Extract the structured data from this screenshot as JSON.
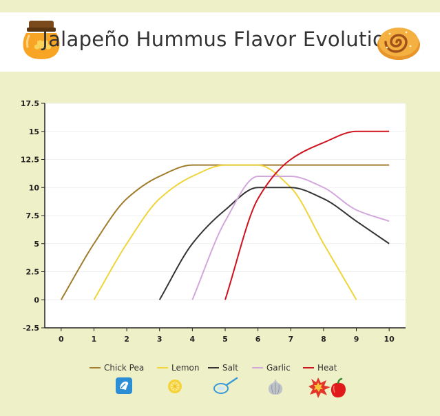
{
  "header": {
    "title": "Jalapeño Hummus Flavor Evolution",
    "left_icon": "honey-jar-icon",
    "right_icon": "cinnamon-roll-icon"
  },
  "chart_data": {
    "type": "line",
    "title": "Jalapeño Hummus Flavor Evolution",
    "xlabel": "",
    "ylabel": "",
    "xlim": [
      -0.5,
      10.5
    ],
    "ylim": [
      -2.5,
      17.5
    ],
    "xticks": [
      0,
      1,
      2,
      3,
      4,
      5,
      6,
      7,
      8,
      9,
      10
    ],
    "yticks": [
      -2.5,
      0,
      2.5,
      5,
      7.5,
      10,
      12.5,
      15,
      17.5
    ],
    "ytick_labels": [
      "-2.5",
      "0",
      "2.5",
      "5",
      "7.5",
      "10",
      "12.5",
      "15",
      "17.5"
    ],
    "grid": true,
    "legend_position": "bottom",
    "series": [
      {
        "name": "Chick Pea",
        "color": "#a07c2c",
        "icon": "bread-slice-icon",
        "x": [
          0,
          1,
          2,
          3,
          4,
          5,
          6,
          7,
          8,
          9,
          10
        ],
        "y": [
          0,
          5,
          9,
          11,
          12,
          12,
          12,
          12,
          12,
          12,
          12
        ]
      },
      {
        "name": "Lemon",
        "color": "#f0d43a",
        "icon": "lemon-icon",
        "x": [
          1,
          2,
          3,
          4,
          5,
          6,
          7,
          8,
          9
        ],
        "y": [
          0,
          5,
          9,
          11,
          12,
          12,
          10,
          5,
          0
        ]
      },
      {
        "name": "Salt",
        "color": "#333333",
        "icon": "salt-spoon-icon",
        "x": [
          3,
          4,
          5,
          6,
          7,
          8,
          9,
          10
        ],
        "y": [
          0,
          5,
          8,
          10,
          10,
          9,
          7,
          5
        ]
      },
      {
        "name": "Garlic",
        "color": "#d2a8dc",
        "icon": "garlic-icon",
        "x": [
          4,
          5,
          6,
          7,
          8,
          9,
          10
        ],
        "y": [
          0,
          7,
          11,
          11,
          10,
          8,
          7
        ]
      },
      {
        "name": "Heat",
        "color": "#d0121e",
        "icon": "explosion-pepper-icon",
        "x": [
          5,
          6,
          7,
          8,
          9,
          10
        ],
        "y": [
          0,
          9,
          12.5,
          14,
          15,
          15
        ]
      }
    ]
  }
}
